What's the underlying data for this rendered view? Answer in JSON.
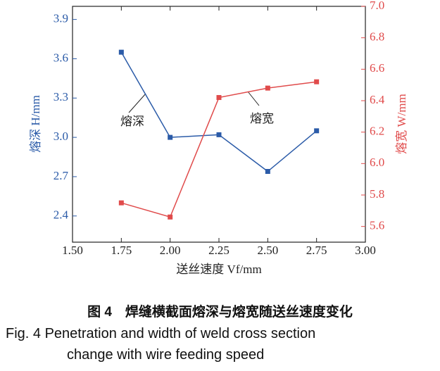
{
  "chart_data": {
    "type": "line",
    "x": [
      1.75,
      2.0,
      2.25,
      2.5,
      2.75
    ],
    "xlim": [
      1.5,
      3.0
    ],
    "xticks": [
      {
        "value": 1.5,
        "label": "1.50"
      },
      {
        "value": 1.75,
        "label": "1.75"
      },
      {
        "value": 2.0,
        "label": "2.00"
      },
      {
        "value": 2.25,
        "label": "2.25"
      },
      {
        "value": 2.5,
        "label": "2.50"
      },
      {
        "value": 2.75,
        "label": "2.75"
      },
      {
        "value": 3.0,
        "label": "3.00"
      }
    ],
    "ylim": [
      2.2,
      4.0
    ],
    "yticks": [
      2.4,
      2.7,
      {
        "value": 3.0,
        "label": "3.0"
      },
      3.3,
      3.6,
      3.9
    ],
    "y2lim": [
      5.5,
      7.0
    ],
    "y2ticks": [
      5.6,
      5.8,
      {
        "value": 6.0,
        "label": "6.0"
      },
      6.2,
      6.4,
      6.6,
      6.8,
      {
        "value": 7.0,
        "label": "7.0"
      }
    ],
    "xlabel": "送丝速度 Vf/mm",
    "ylabel": "熔深 H/mm",
    "y2label": "熔宽 W/mm",
    "series": [
      {
        "name": "熔深",
        "color": "#2b5ba8",
        "values": [
          3.65,
          3.0,
          3.02,
          2.74,
          3.05
        ]
      },
      {
        "name": "熔宽",
        "color": "#e04b4b",
        "axis": "y2",
        "values": [
          5.75,
          5.66,
          6.42,
          6.48,
          6.52
        ]
      }
    ]
  },
  "caption": {
    "zh": "图 4　焊缝横截面熔深与熔宽随送丝速度变化",
    "en_line1": "Fig. 4   Penetration and width of weld cross section",
    "en_line2": "change with wire feeding speed"
  }
}
